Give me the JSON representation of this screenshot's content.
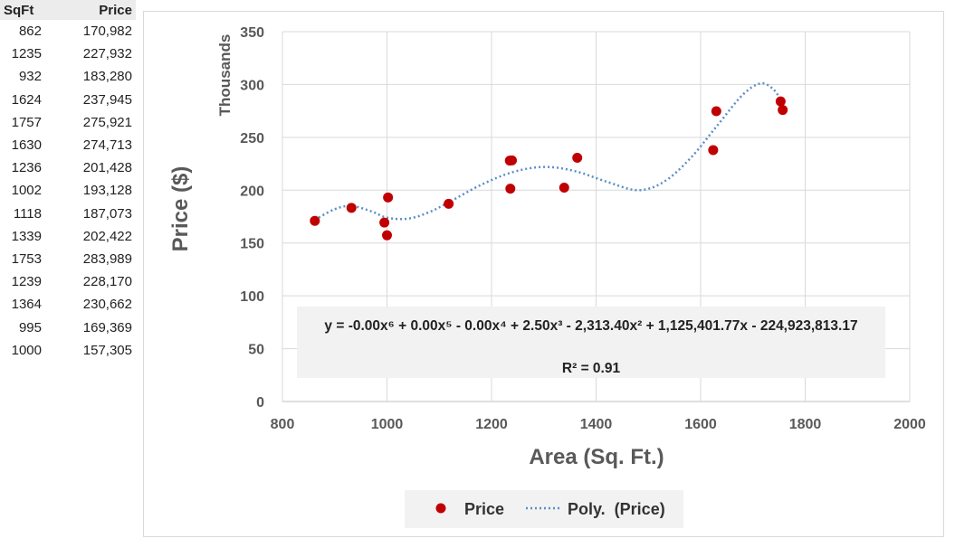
{
  "table": {
    "headers": [
      "SqFt",
      "Price"
    ],
    "rows": [
      [
        "862",
        "170,982"
      ],
      [
        "1235",
        "227,932"
      ],
      [
        "932",
        "183,280"
      ],
      [
        "1624",
        "237,945"
      ],
      [
        "1757",
        "275,921"
      ],
      [
        "1630",
        "274,713"
      ],
      [
        "1236",
        "201,428"
      ],
      [
        "1002",
        "193,128"
      ],
      [
        "1118",
        "187,073"
      ],
      [
        "1339",
        "202,422"
      ],
      [
        "1753",
        "283,989"
      ],
      [
        "1239",
        "228,170"
      ],
      [
        "1364",
        "230,662"
      ],
      [
        "995",
        "169,369"
      ],
      [
        "1000",
        "157,305"
      ]
    ]
  },
  "chart_data": {
    "type": "scatter",
    "xlabel": "Area (Sq. Ft.)",
    "ylabel": "Price ($)",
    "y_unit_label": "Thousands",
    "xlim": [
      800,
      2000
    ],
    "ylim": [
      0,
      350
    ],
    "x_ticks": [
      "800",
      "1000",
      "1200",
      "1400",
      "1600",
      "1800",
      "2000"
    ],
    "y_ticks": [
      "0",
      "50",
      "100",
      "150",
      "200",
      "250",
      "300",
      "350"
    ],
    "grid": true,
    "legend_position": "bottom",
    "series": [
      {
        "name": "Price",
        "color": "#c00000",
        "points": [
          {
            "x": 862,
            "y": 170.982
          },
          {
            "x": 1235,
            "y": 227.932
          },
          {
            "x": 932,
            "y": 183.28
          },
          {
            "x": 1624,
            "y": 237.945
          },
          {
            "x": 1757,
            "y": 275.921
          },
          {
            "x": 1630,
            "y": 274.713
          },
          {
            "x": 1236,
            "y": 201.428
          },
          {
            "x": 1002,
            "y": 193.128
          },
          {
            "x": 1118,
            "y": 187.073
          },
          {
            "x": 1339,
            "y": 202.422
          },
          {
            "x": 1753,
            "y": 283.989
          },
          {
            "x": 1239,
            "y": 228.17
          },
          {
            "x": 1364,
            "y": 230.662
          },
          {
            "x": 995,
            "y": 169.369
          },
          {
            "x": 1000,
            "y": 157.305
          }
        ]
      }
    ],
    "trendline": {
      "name": "Poly.  (Price)",
      "type": "polynomial",
      "order": 6,
      "color": "#5b8fc7",
      "curve_points": [
        {
          "x": 862,
          "y": 172
        },
        {
          "x": 900,
          "y": 182
        },
        {
          "x": 932,
          "y": 185
        },
        {
          "x": 970,
          "y": 180
        },
        {
          "x": 1000,
          "y": 174
        },
        {
          "x": 1040,
          "y": 173
        },
        {
          "x": 1080,
          "y": 179
        },
        {
          "x": 1120,
          "y": 189
        },
        {
          "x": 1180,
          "y": 205
        },
        {
          "x": 1240,
          "y": 217
        },
        {
          "x": 1300,
          "y": 222
        },
        {
          "x": 1360,
          "y": 218
        },
        {
          "x": 1420,
          "y": 208
        },
        {
          "x": 1480,
          "y": 200
        },
        {
          "x": 1530,
          "y": 208
        },
        {
          "x": 1580,
          "y": 230
        },
        {
          "x": 1630,
          "y": 260
        },
        {
          "x": 1680,
          "y": 290
        },
        {
          "x": 1715,
          "y": 301
        },
        {
          "x": 1740,
          "y": 295
        },
        {
          "x": 1757,
          "y": 282
        }
      ]
    },
    "equation": {
      "line1": "y = -0.00x⁶ + 0.00x⁵ - 0.00x⁴ + 2.50x³ - 2,313.40x² + 1,125,401.77x - 224,923,813.17",
      "line2": "R² = 0.91"
    },
    "legend": [
      {
        "label": "Price",
        "marker": "dot",
        "color": "#c00000"
      },
      {
        "label": "Poly.  (Price)",
        "marker": "dotted-line",
        "color": "#5b8fc7"
      }
    ]
  }
}
